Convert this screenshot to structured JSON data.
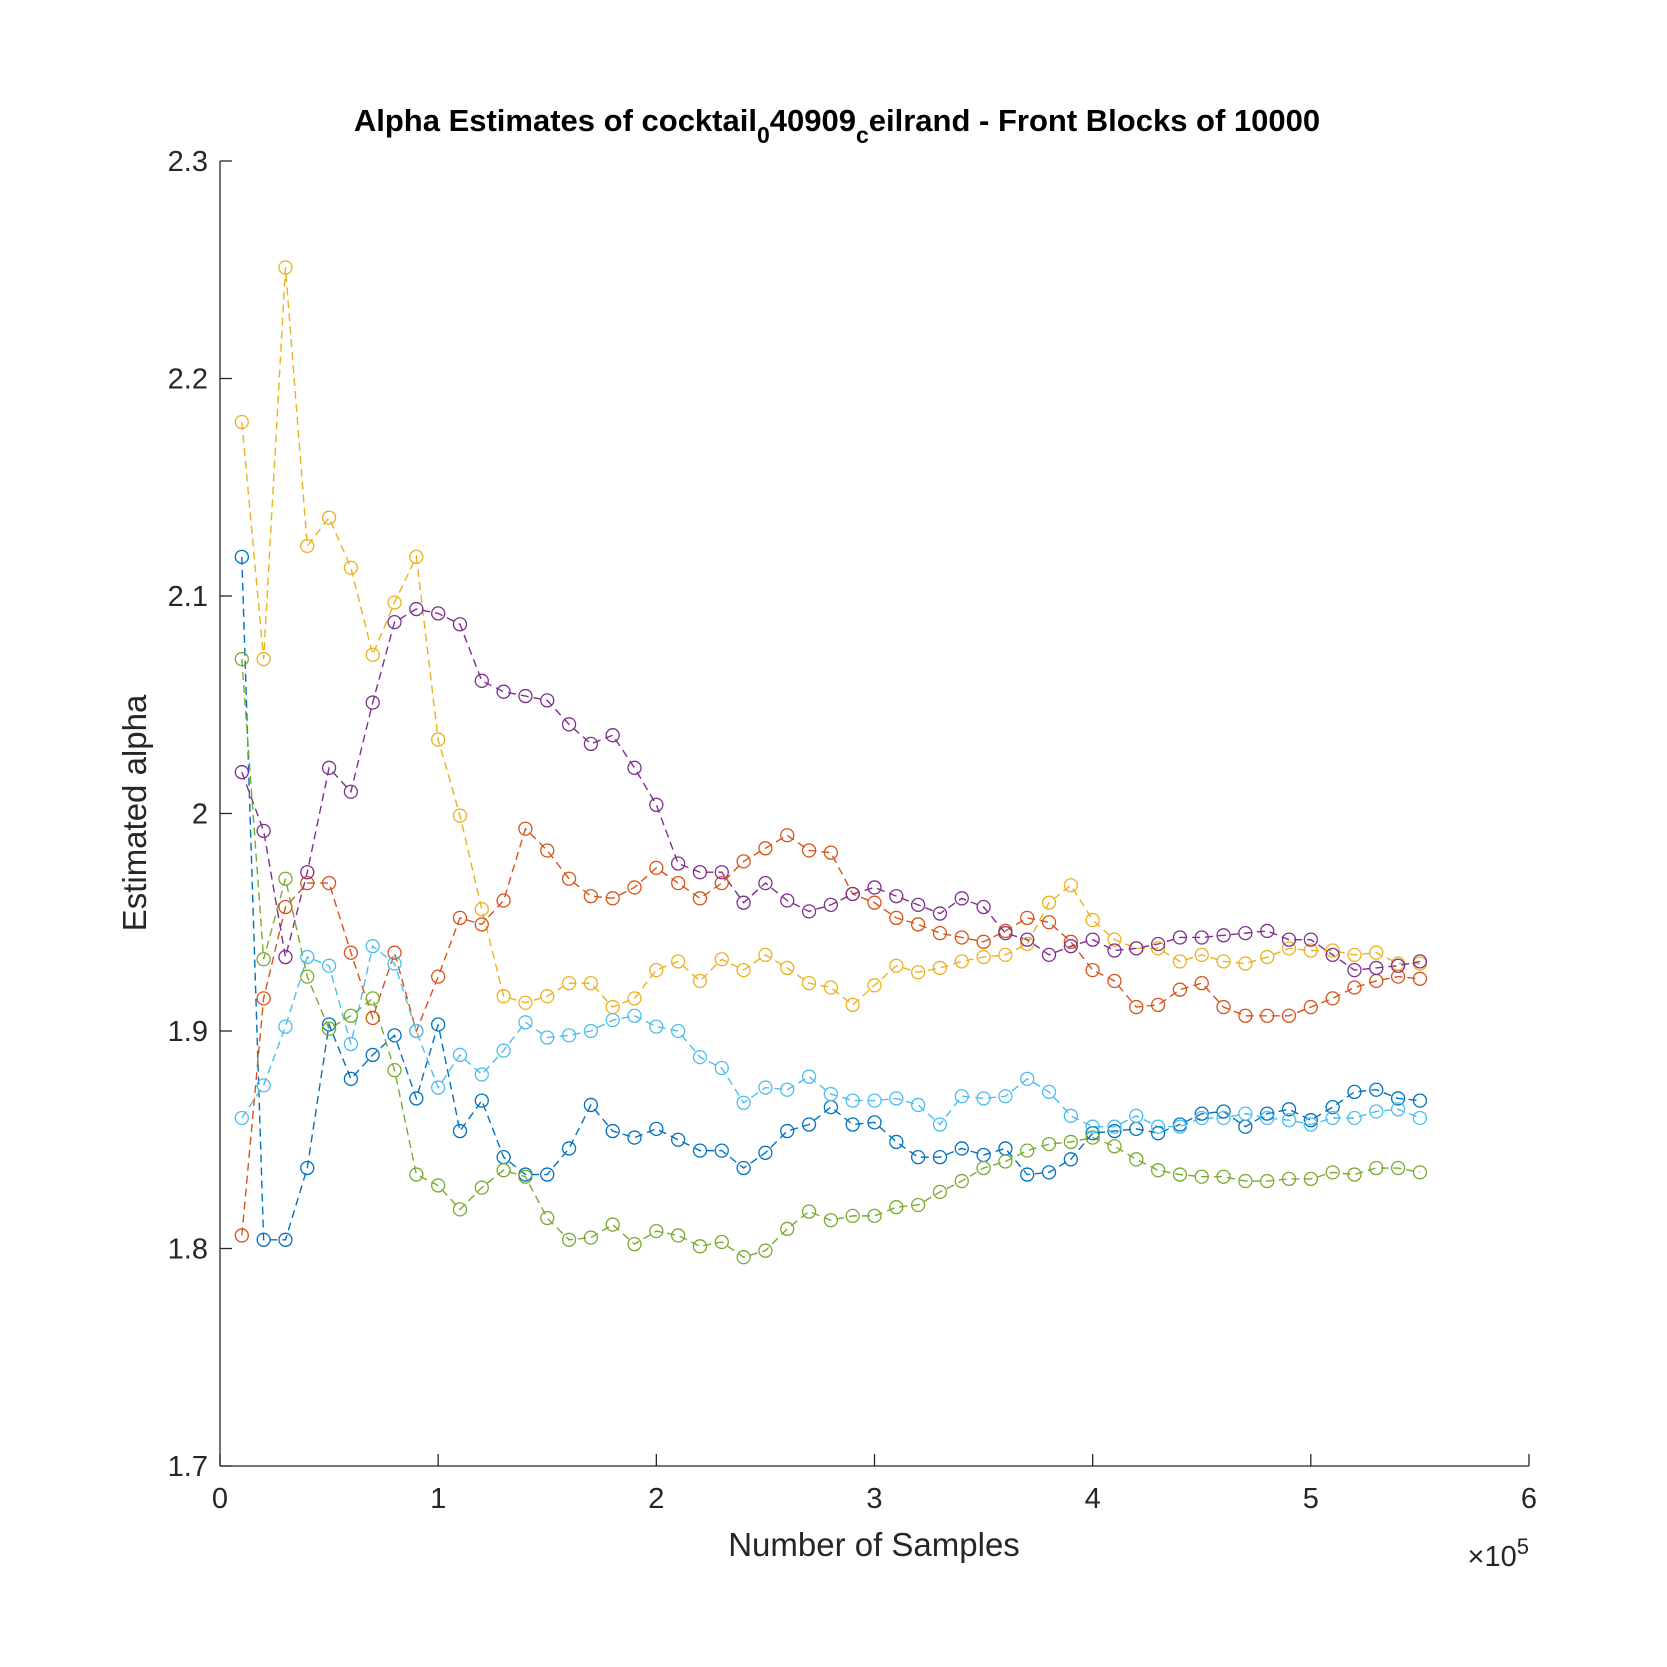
{
  "chart_data": {
    "type": "line",
    "title_parts": [
      {
        "text": "Alpha Estimates of cocktail",
        "sub": false
      },
      {
        "text": "0",
        "sub": true
      },
      {
        "text": "40909",
        "sub": false
      },
      {
        "text": "c",
        "sub": true
      },
      {
        "text": "eilrand - Front Blocks of 10000",
        "sub": false
      }
    ],
    "xlabel": "Number of Samples",
    "ylabel": "Estimated alpha",
    "x_exponent": {
      "base": "×10",
      "power": "5"
    },
    "xlim": [
      0,
      6
    ],
    "ylim": [
      1.7,
      2.3
    ],
    "xticks": [
      0,
      1,
      2,
      3,
      4,
      5,
      6
    ],
    "xtick_labels": [
      "0",
      "1",
      "2",
      "3",
      "4",
      "5",
      "6"
    ],
    "yticks": [
      1.7,
      1.8,
      1.9,
      2.0,
      2.1,
      2.2,
      2.3
    ],
    "ytick_labels": [
      "1.7",
      "1.8",
      "1.9",
      "2",
      "2.1",
      "2.2",
      "2.3"
    ],
    "grid": false,
    "line_style": "dashed",
    "marker": "open-circle",
    "x": [
      0.1,
      0.2,
      0.3,
      0.4,
      0.5,
      0.6,
      0.7,
      0.8,
      0.9,
      1.0,
      1.1,
      1.2,
      1.3,
      1.4,
      1.5,
      1.6,
      1.7,
      1.8,
      1.9,
      2.0,
      2.1,
      2.2,
      2.3,
      2.4,
      2.5,
      2.6,
      2.7,
      2.8,
      2.9,
      3.0,
      3.1,
      3.2,
      3.3,
      3.4,
      3.5,
      3.6,
      3.7,
      3.8,
      3.9,
      4.0,
      4.1,
      4.2,
      4.3,
      4.4,
      4.5,
      4.6,
      4.7,
      4.8,
      4.9,
      5.0,
      5.1,
      5.2,
      5.3,
      5.4,
      5.5
    ],
    "series": [
      {
        "color": "#0072BD",
        "values": [
          2.118,
          1.804,
          1.804,
          1.837,
          1.903,
          1.878,
          1.889,
          1.898,
          1.869,
          1.903,
          1.854,
          1.868,
          1.842,
          1.834,
          1.834,
          1.846,
          1.866,
          1.854,
          1.851,
          1.855,
          1.85,
          1.845,
          1.845,
          1.837,
          1.844,
          1.854,
          1.857,
          1.865,
          1.857,
          1.858,
          1.849,
          1.842,
          1.842,
          1.846,
          1.843,
          1.846,
          1.834,
          1.835,
          1.841,
          1.853,
          1.854,
          1.855,
          1.853,
          1.857,
          1.862,
          1.863,
          1.856,
          1.862,
          1.864,
          1.859,
          1.865,
          1.872,
          1.873,
          1.869,
          1.868
        ]
      },
      {
        "color": "#D95319",
        "values": [
          1.806,
          1.915,
          1.957,
          1.968,
          1.968,
          1.936,
          1.906,
          1.936,
          1.9,
          1.925,
          1.952,
          1.949,
          1.96,
          1.993,
          1.983,
          1.97,
          1.962,
          1.961,
          1.966,
          1.975,
          1.968,
          1.961,
          1.968,
          1.978,
          1.984,
          1.99,
          1.983,
          1.982,
          1.963,
          1.959,
          1.952,
          1.949,
          1.945,
          1.943,
          1.941,
          1.946,
          1.952,
          1.95,
          1.941,
          1.928,
          1.923,
          1.911,
          1.912,
          1.919,
          1.922,
          1.911,
          1.907,
          1.907,
          1.907,
          1.911,
          1.915,
          1.92,
          1.923,
          1.925,
          1.924
        ]
      },
      {
        "color": "#EDB120",
        "values": [
          2.18,
          2.071,
          2.251,
          2.123,
          2.136,
          2.113,
          2.073,
          2.097,
          2.118,
          2.034,
          1.999,
          1.956,
          1.916,
          1.913,
          1.916,
          1.922,
          1.922,
          1.911,
          1.915,
          1.928,
          1.932,
          1.923,
          1.933,
          1.928,
          1.935,
          1.929,
          1.922,
          1.92,
          1.912,
          1.921,
          1.93,
          1.927,
          1.929,
          1.932,
          1.934,
          1.935,
          1.94,
          1.959,
          1.967,
          1.951,
          1.942,
          1.938,
          1.938,
          1.932,
          1.935,
          1.932,
          1.931,
          1.934,
          1.938,
          1.937,
          1.937,
          1.935,
          1.936,
          1.931,
          1.931
        ]
      },
      {
        "color": "#7E2F8E",
        "values": [
          2.019,
          1.992,
          1.934,
          1.973,
          2.021,
          2.01,
          2.051,
          2.088,
          2.094,
          2.092,
          2.087,
          2.061,
          2.056,
          2.054,
          2.052,
          2.041,
          2.032,
          2.036,
          2.021,
          2.004,
          1.977,
          1.973,
          1.973,
          1.959,
          1.968,
          1.96,
          1.955,
          1.958,
          1.963,
          1.966,
          1.962,
          1.958,
          1.954,
          1.961,
          1.957,
          1.945,
          1.942,
          1.935,
          1.939,
          1.942,
          1.937,
          1.938,
          1.94,
          1.943,
          1.943,
          1.944,
          1.945,
          1.946,
          1.942,
          1.942,
          1.935,
          1.928,
          1.929,
          1.93,
          1.932
        ]
      },
      {
        "color": "#77AC30",
        "values": [
          2.071,
          1.933,
          1.97,
          1.925,
          1.901,
          1.907,
          1.915,
          1.882,
          1.834,
          1.829,
          1.818,
          1.828,
          1.836,
          1.833,
          1.814,
          1.804,
          1.805,
          1.811,
          1.802,
          1.808,
          1.806,
          1.801,
          1.803,
          1.796,
          1.799,
          1.809,
          1.817,
          1.813,
          1.815,
          1.815,
          1.819,
          1.82,
          1.826,
          1.831,
          1.837,
          1.84,
          1.845,
          1.848,
          1.849,
          1.851,
          1.847,
          1.841,
          1.836,
          1.834,
          1.833,
          1.833,
          1.831,
          1.831,
          1.832,
          1.832,
          1.835,
          1.834,
          1.837,
          1.837,
          1.835
        ]
      },
      {
        "color": "#4DBEEE",
        "values": [
          1.86,
          1.875,
          1.902,
          1.934,
          1.93,
          1.894,
          1.939,
          1.931,
          1.9,
          1.874,
          1.889,
          1.88,
          1.891,
          1.904,
          1.897,
          1.898,
          1.9,
          1.905,
          1.907,
          1.902,
          1.9,
          1.888,
          1.883,
          1.867,
          1.874,
          1.873,
          1.879,
          1.871,
          1.868,
          1.868,
          1.869,
          1.866,
          1.857,
          1.87,
          1.869,
          1.87,
          1.878,
          1.872,
          1.861,
          1.856,
          1.856,
          1.861,
          1.856,
          1.856,
          1.86,
          1.86,
          1.862,
          1.86,
          1.859,
          1.857,
          1.86,
          1.86,
          1.863,
          1.864,
          1.86
        ]
      }
    ]
  }
}
